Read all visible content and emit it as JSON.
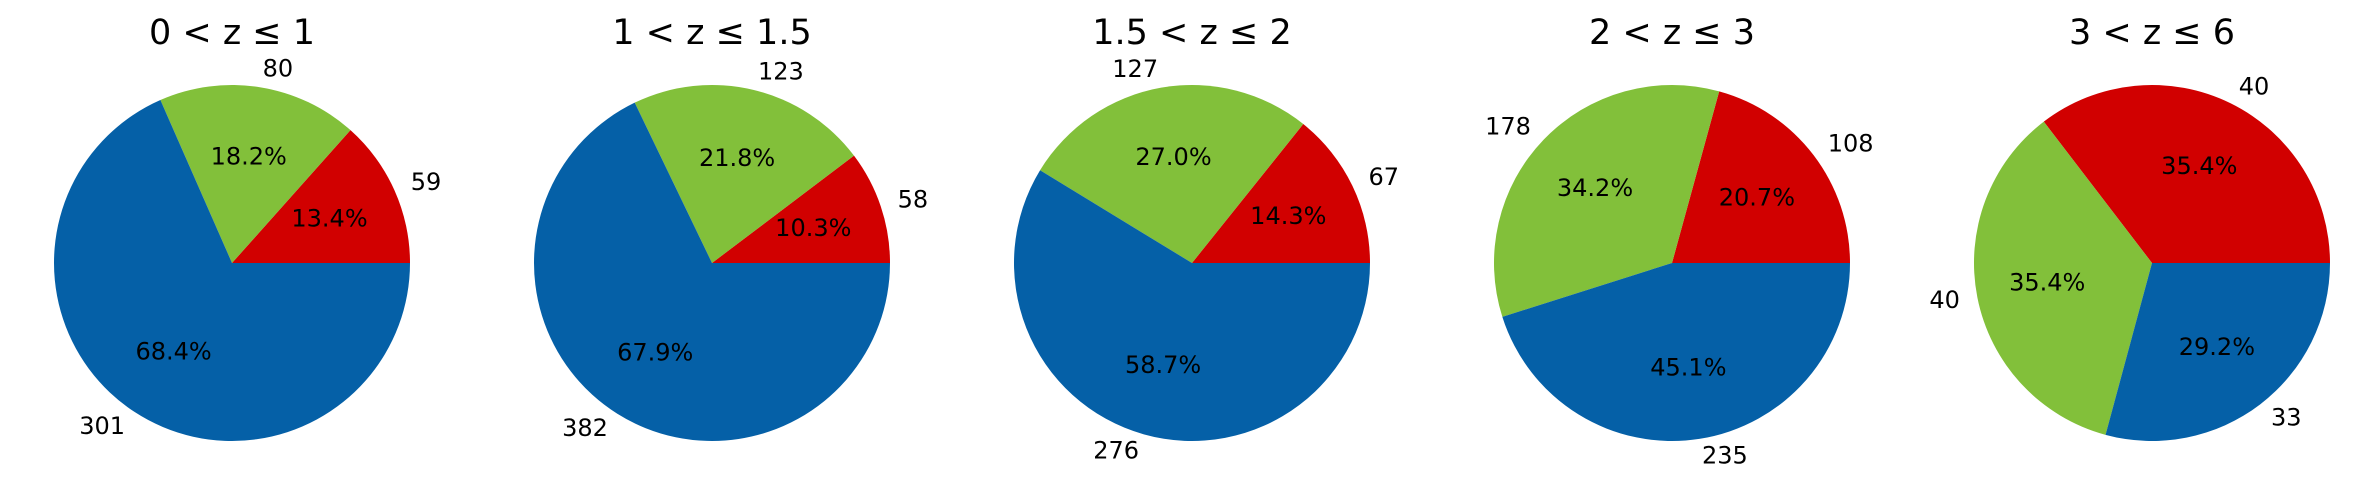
{
  "figure": {
    "colors": {
      "red": "#d10000",
      "green": "#82c03a",
      "blue": "#0560a7"
    }
  },
  "chart_data": [
    {
      "type": "pie",
      "title": "0 < z ≤ 1",
      "labels": [
        "59",
        "80",
        "301"
      ],
      "values": [
        59,
        80,
        301
      ],
      "percent_labels": [
        "13.4%",
        "18.2%",
        "68.4%"
      ],
      "colors": [
        "#d10000",
        "#82c03a",
        "#0560a7"
      ],
      "start_angle_deg": 0,
      "direction": "counterclockwise"
    },
    {
      "type": "pie",
      "title": "1 < z ≤ 1.5",
      "labels": [
        "58",
        "123",
        "382"
      ],
      "values": [
        58,
        123,
        382
      ],
      "percent_labels": [
        "10.3%",
        "21.8%",
        "67.9%"
      ],
      "colors": [
        "#d10000",
        "#82c03a",
        "#0560a7"
      ],
      "start_angle_deg": 0,
      "direction": "counterclockwise"
    },
    {
      "type": "pie",
      "title": "1.5 < z ≤ 2",
      "labels": [
        "67",
        "127",
        "276"
      ],
      "values": [
        67,
        127,
        276
      ],
      "percent_labels": [
        "14.3%",
        "27.0%",
        "58.7%"
      ],
      "colors": [
        "#d10000",
        "#82c03a",
        "#0560a7"
      ],
      "start_angle_deg": 0,
      "direction": "counterclockwise"
    },
    {
      "type": "pie",
      "title": "2 < z ≤ 3",
      "labels": [
        "108",
        "178",
        "235"
      ],
      "values": [
        108,
        178,
        235
      ],
      "percent_labels": [
        "20.7%",
        "34.2%",
        "45.1%"
      ],
      "colors": [
        "#d10000",
        "#82c03a",
        "#0560a7"
      ],
      "start_angle_deg": 0,
      "direction": "counterclockwise"
    },
    {
      "type": "pie",
      "title": "3 < z ≤ 6",
      "labels": [
        "40",
        "40",
        "33"
      ],
      "values": [
        40,
        40,
        33
      ],
      "percent_labels": [
        "35.4%",
        "35.4%",
        "29.2%"
      ],
      "colors": [
        "#d10000",
        "#82c03a",
        "#0560a7"
      ],
      "start_angle_deg": 0,
      "direction": "counterclockwise"
    }
  ]
}
